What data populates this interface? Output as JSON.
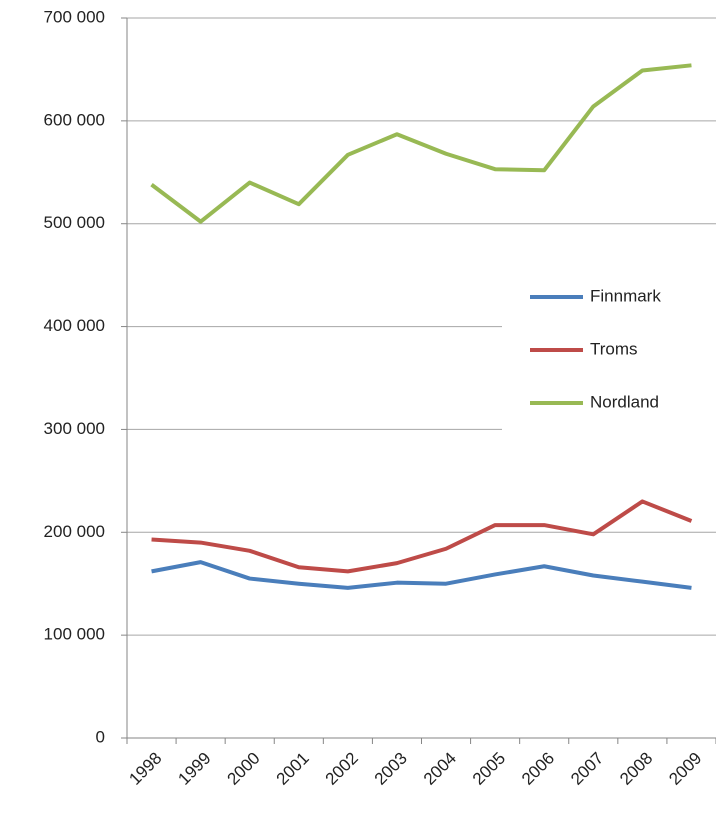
{
  "chart_data": {
    "type": "line",
    "categories": [
      "1998",
      "1999",
      "2000",
      "2001",
      "2002",
      "2003",
      "2004",
      "2005",
      "2006",
      "2007",
      "2008",
      "2009"
    ],
    "series": [
      {
        "name": "Finnmark",
        "color": "#4a7ebb",
        "values": [
          162000,
          171000,
          155000,
          150000,
          146000,
          151000,
          150000,
          159000,
          167000,
          158000,
          152000,
          146000
        ]
      },
      {
        "name": "Troms",
        "color": "#be4b48",
        "values": [
          193000,
          190000,
          182000,
          166000,
          162000,
          170000,
          184000,
          207000,
          207000,
          198000,
          230000,
          211000
        ]
      },
      {
        "name": "Nordland",
        "color": "#98b954",
        "values": [
          538000,
          502000,
          540000,
          519000,
          567000,
          587000,
          568000,
          553000,
          552000,
          614000,
          649000,
          654000
        ]
      }
    ],
    "ylim": [
      0,
      700000
    ],
    "yticks": [
      0,
      {
        "value": 100000,
        "label": "100 000"
      },
      {
        "value": 200000,
        "label": "200 000"
      },
      {
        "value": 300000,
        "label": "300 000"
      },
      {
        "value": 400000,
        "label": "400 000"
      },
      {
        "value": 500000,
        "label": "500 000"
      },
      {
        "value": 600000,
        "label": "600 000"
      },
      {
        "value": 700000,
        "label": "700 000"
      }
    ],
    "grid": true,
    "legend": "right"
  }
}
